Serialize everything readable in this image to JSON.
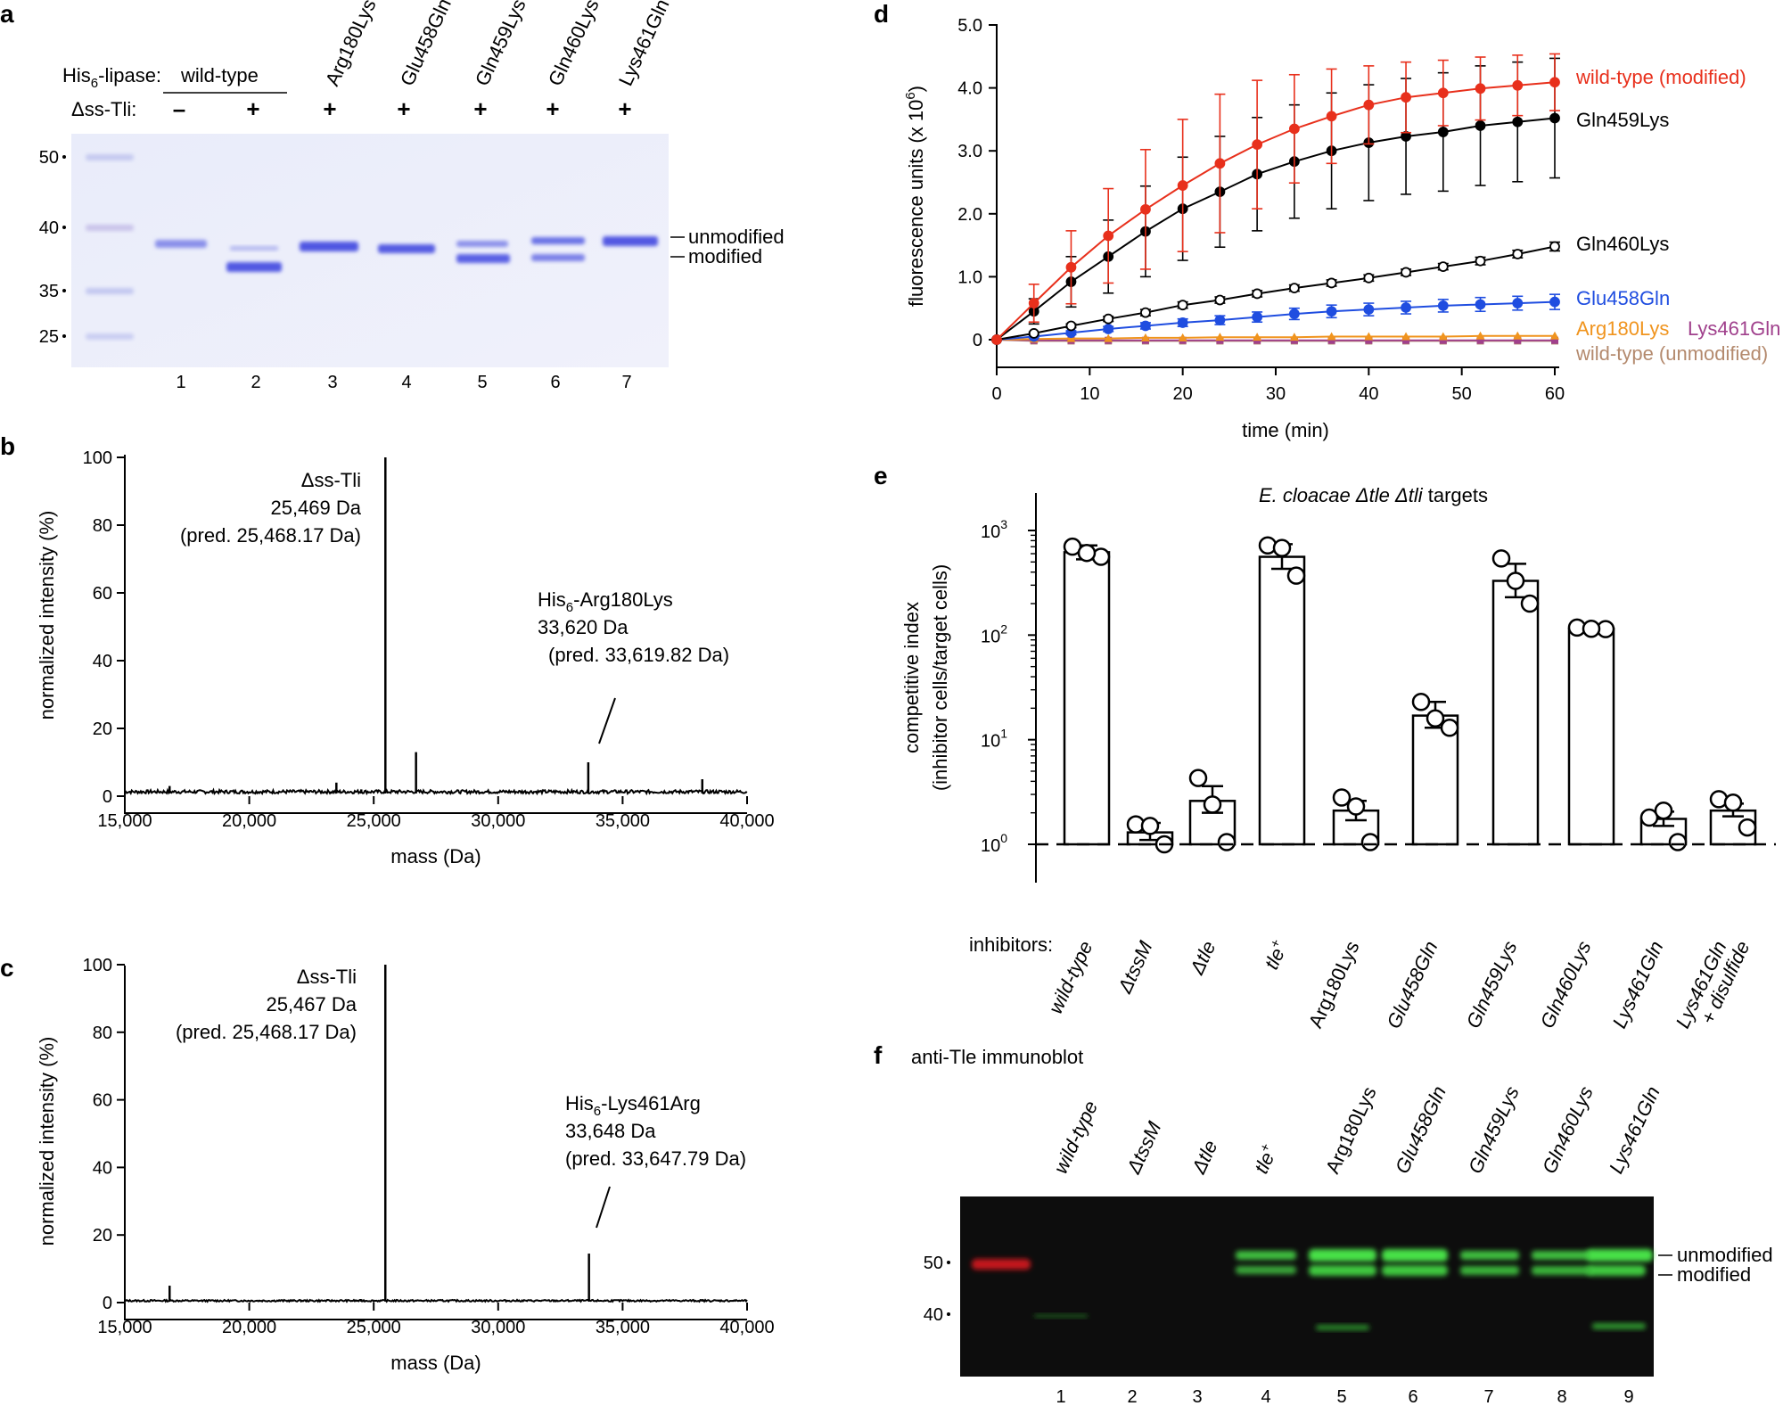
{
  "panel_labels": {
    "a": "a",
    "b": "b",
    "c": "c",
    "d": "d",
    "e": "e",
    "f": "f"
  },
  "colors": {
    "red": "#e8301c",
    "black": "#000000",
    "blue": "#1f4de0",
    "orange": "#f0941e",
    "purple": "#a0408c",
    "tan": "#b48a6e",
    "gel_bg": "#eef0fa",
    "band": "#5a63e6",
    "blot_bg": "#0d0d0d",
    "blot_green": "#3de03d"
  },
  "panel_a": {
    "row1_label": "His6-lipase:",
    "row1_label_parts": [
      "His",
      "6",
      "-lipase:"
    ],
    "wild_type": "wild-type",
    "mutants": [
      "Arg180Lys",
      "Glu458Gln",
      "Gln459Lys",
      "Gln460Lys",
      "Lys461Gln"
    ],
    "row2_label": "Δss-Tli:",
    "signs": [
      "–",
      "+",
      "+",
      "+",
      "+",
      "+",
      "+"
    ],
    "markers": [
      "50",
      "40",
      "35",
      "25"
    ],
    "lanes": [
      "1",
      "2",
      "3",
      "4",
      "5",
      "6",
      "7"
    ],
    "band_unmodified": "unmodified",
    "band_modified": "modified"
  },
  "panel_b": {
    "peak1_lines": [
      "Δss-Tli",
      "25,469 Da",
      "(pred. 25,468.17 Da)"
    ],
    "peak2_label_parts": [
      "His",
      "6",
      "-Arg180Lys"
    ],
    "peak2_lines": [
      "33,620 Da",
      "(pred. 33,619.82 Da)"
    ],
    "ylabel": "normalized intensity (%)",
    "xlabel": "mass (Da)",
    "yticks": [
      "0",
      "20",
      "40",
      "60",
      "80",
      "100"
    ],
    "xticks": [
      "15,000",
      "20,000",
      "25,000",
      "30,000",
      "35,000",
      "40,000"
    ]
  },
  "panel_c": {
    "peak1_lines": [
      "Δss-Tli",
      "25,467 Da",
      "(pred. 25,468.17 Da)"
    ],
    "peak2_label_parts": [
      "His",
      "6",
      "-Lys461Arg"
    ],
    "peak2_lines": [
      "33,648 Da",
      "(pred. 33,647.79 Da)"
    ],
    "ylabel": "normalized intensity (%)",
    "xlabel": "mass (Da)",
    "yticks": [
      "0",
      "20",
      "40",
      "60",
      "80",
      "100"
    ],
    "xticks": [
      "15,000",
      "20,000",
      "25,000",
      "30,000",
      "35,000",
      "40,000"
    ]
  },
  "panel_d": {
    "ylabel_main": "fluorescence units (x 10",
    "ylabel_exp": "6",
    "ylabel_close": ")",
    "xlabel": "time (min)",
    "legend": [
      "wild-type (modified)",
      "Gln459Lys",
      "Gln460Lys",
      "Glu458Gln",
      "Arg180Lys",
      "Lys461Gln",
      "wild-type (unmodified)"
    ],
    "yticks": [
      "0",
      "1.0",
      "2.0",
      "3.0",
      "4.0",
      "5.0"
    ],
    "xticks": [
      "0",
      "10",
      "20",
      "30",
      "40",
      "50",
      "60"
    ]
  },
  "panel_e": {
    "title_italic": "E. cloacae Δtle Δtli",
    "title_rest": " targets",
    "ylabel1": "competitive index",
    "ylabel2": "(inhibitor cells/target cells)",
    "inhibitors_label": "inhibitors:",
    "yticks": [
      {
        "base": "10",
        "exp": "0"
      },
      {
        "base": "10",
        "exp": "1"
      },
      {
        "base": "10",
        "exp": "2"
      },
      {
        "base": "10",
        "exp": "3"
      }
    ],
    "xlabels": [
      "wild-type",
      "ΔtssM",
      "Δtle",
      "tle",
      "Arg180Lys",
      "Glu458Gln",
      "Gln459Lys",
      "Gln460Lys",
      "Lys461Gln",
      "Lys461Gln"
    ],
    "tle_plus_superscript": "+",
    "last_label_line2": "+ disulfide"
  },
  "panel_f": {
    "title": "anti-Tle immunoblot",
    "lane_labels": [
      "wild-type",
      "ΔtssM",
      "Δtle",
      "tle",
      "Arg180Lys",
      "Glu458Gln",
      "Gln459Lys",
      "Gln460Lys",
      "Lys461Gln"
    ],
    "tle_plus_superscript": "+",
    "markers": [
      "50",
      "40"
    ],
    "lanes": [
      "1",
      "2",
      "3",
      "4",
      "5",
      "6",
      "7",
      "8",
      "9"
    ],
    "band_unmodified": "unmodified",
    "band_modified": "modified"
  },
  "chart_data": [
    {
      "type": "line",
      "panel": "b",
      "title": "",
      "xlabel": "mass (Da)",
      "ylabel": "normalized intensity (%)",
      "xlim": [
        15000,
        40000
      ],
      "ylim": [
        0,
        100
      ],
      "series": [
        {
          "name": "spectrum",
          "peaks": [
            {
              "x": 16800,
              "y": 3
            },
            {
              "x": 23500,
              "y": 4
            },
            {
              "x": 24500,
              "y": 2
            },
            {
              "x": 25469,
              "y": 100
            },
            {
              "x": 26700,
              "y": 13
            },
            {
              "x": 33620,
              "y": 10
            },
            {
              "x": 38200,
              "y": 5
            }
          ]
        }
      ]
    },
    {
      "type": "line",
      "panel": "c",
      "title": "",
      "xlabel": "mass (Da)",
      "ylabel": "normalized intensity (%)",
      "xlim": [
        15000,
        40000
      ],
      "ylim": [
        0,
        100
      ],
      "series": [
        {
          "name": "spectrum",
          "peaks": [
            {
              "x": 16800,
              "y": 5
            },
            {
              "x": 24500,
              "y": 1
            },
            {
              "x": 25467,
              "y": 100
            },
            {
              "x": 33648,
              "y": 14.5
            },
            {
              "x": 38200,
              "y": 1
            }
          ]
        }
      ]
    },
    {
      "type": "line",
      "panel": "d",
      "title": "",
      "xlabel": "time (min)",
      "ylabel": "fluorescence units (x 10^6)",
      "xlim": [
        0,
        60
      ],
      "ylim": [
        0,
        5
      ],
      "x": [
        0,
        4,
        8,
        12,
        16,
        20,
        24,
        28,
        32,
        36,
        40,
        44,
        48,
        52,
        56,
        60
      ],
      "series": [
        {
          "name": "wild-type (modified)",
          "color": "#e8301c",
          "filled": true,
          "values": [
            0,
            0.58,
            1.15,
            1.65,
            2.07,
            2.45,
            2.8,
            3.1,
            3.35,
            3.55,
            3.73,
            3.85,
            3.92,
            3.99,
            4.04,
            4.09
          ],
          "errors": [
            0,
            0.3,
            0.58,
            0.75,
            0.95,
            1.05,
            1.1,
            1.02,
            0.86,
            0.75,
            0.62,
            0.56,
            0.52,
            0.5,
            0.48,
            0.45
          ]
        },
        {
          "name": "Gln459Lys",
          "color": "#000000",
          "filled": true,
          "values": [
            0,
            0.45,
            0.92,
            1.32,
            1.72,
            2.08,
            2.35,
            2.63,
            2.83,
            3.0,
            3.13,
            3.23,
            3.3,
            3.4,
            3.46,
            3.52
          ],
          "errors": [
            0,
            0.2,
            0.4,
            0.58,
            0.72,
            0.82,
            0.88,
            0.9,
            0.9,
            0.92,
            0.92,
            0.92,
            0.94,
            0.95,
            0.95,
            0.95
          ]
        },
        {
          "name": "Gln460Lys",
          "color": "#000000",
          "filled": false,
          "values": [
            0,
            0.1,
            0.22,
            0.33,
            0.43,
            0.55,
            0.63,
            0.73,
            0.82,
            0.9,
            0.98,
            1.07,
            1.16,
            1.25,
            1.36,
            1.48
          ],
          "errors": [
            0,
            0.02,
            0.03,
            0.04,
            0.05,
            0.05,
            0.05,
            0.05,
            0.05,
            0.05,
            0.05,
            0.05,
            0.05,
            0.06,
            0.06,
            0.07
          ]
        },
        {
          "name": "Glu458Gln",
          "color": "#1f4de0",
          "filled": true,
          "values": [
            0,
            0.05,
            0.11,
            0.17,
            0.22,
            0.27,
            0.31,
            0.36,
            0.41,
            0.45,
            0.48,
            0.51,
            0.54,
            0.56,
            0.58,
            0.6
          ],
          "errors": [
            0,
            0.02,
            0.03,
            0.04,
            0.05,
            0.06,
            0.07,
            0.08,
            0.09,
            0.1,
            0.1,
            0.1,
            0.1,
            0.11,
            0.11,
            0.12
          ]
        },
        {
          "name": "Arg180Lys",
          "color": "#f0941e",
          "filled": true,
          "values": [
            0,
            0.01,
            0.02,
            0.02,
            0.03,
            0.03,
            0.04,
            0.04,
            0.04,
            0.05,
            0.05,
            0.05,
            0.05,
            0.06,
            0.06,
            0.06
          ]
        },
        {
          "name": "Lys461Gln",
          "color": "#a0408c",
          "filled": true,
          "values": [
            0,
            -0.01,
            -0.01,
            -0.01,
            -0.01,
            -0.01,
            -0.01,
            -0.01,
            -0.01,
            -0.01,
            -0.01,
            -0.01,
            -0.01,
            -0.01,
            -0.01,
            -0.01
          ]
        },
        {
          "name": "wild-type (unmodified)",
          "color": "#b48a6e",
          "filled": true,
          "values": [
            0,
            -0.02,
            -0.02,
            -0.02,
            -0.02,
            -0.02,
            -0.02,
            -0.02,
            -0.02,
            -0.02,
            -0.02,
            -0.02,
            -0.02,
            -0.02,
            -0.02,
            -0.02
          ]
        }
      ]
    },
    {
      "type": "bar",
      "panel": "e",
      "title": "E. cloacae Δtle Δtli targets",
      "xlabel": "inhibitors:",
      "ylabel": "competitive index (inhibitor cells/target cells)",
      "yscale": "log",
      "ylim": [
        1,
        1000
      ],
      "categories": [
        "wild-type",
        "ΔtssM",
        "Δtle",
        "tle+",
        "Arg180Lys",
        "Glu458Gln",
        "Gln459Lys",
        "Gln460Lys",
        "Lys461Gln",
        "Lys461Gln + disulfide"
      ],
      "values": [
        620,
        1.3,
        2.6,
        560,
        2.1,
        17,
        330,
        115,
        1.75,
        2.1
      ],
      "error_low": [
        530,
        1.1,
        2.0,
        430,
        1.7,
        13,
        230,
        112,
        1.5,
        1.85
      ],
      "error_high": [
        720,
        1.6,
        3.6,
        740,
        2.6,
        23,
        480,
        118,
        2.05,
        2.45
      ],
      "points": [
        [
          700,
          560,
          610
        ],
        [
          1.55,
          1.0,
          1.5
        ],
        [
          4.3,
          1.05,
          2.4
        ],
        [
          720,
          370,
          680
        ],
        [
          2.8,
          1.05,
          2.3
        ],
        [
          23,
          13,
          16
        ],
        [
          540,
          200,
          330
        ],
        [
          118,
          114,
          115
        ],
        [
          1.8,
          1.05,
          2.1
        ],
        [
          2.7,
          1.45,
          2.5
        ]
      ]
    }
  ]
}
